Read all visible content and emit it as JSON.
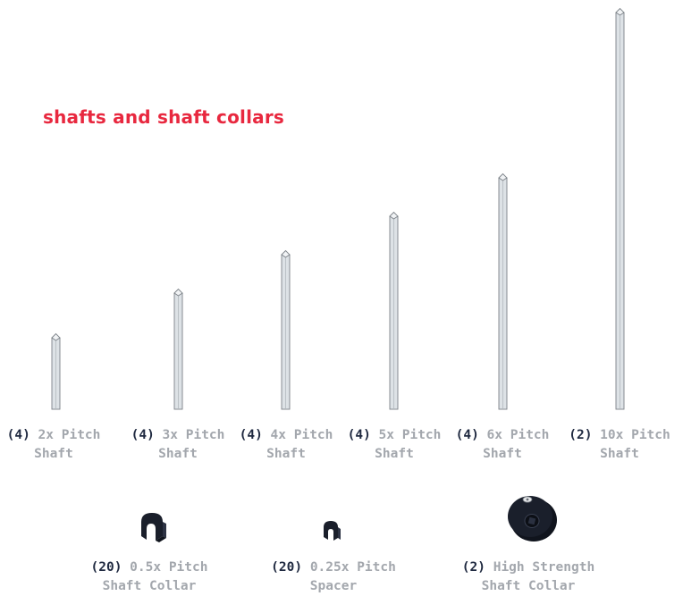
{
  "title": "shafts and shaft collars",
  "shafts": [
    {
      "qty": "(4)",
      "name_line1": "2x Pitch",
      "name_line2": "Shaft",
      "icon": "shaft-icon"
    },
    {
      "qty": "(4)",
      "name_line1": "3x Pitch",
      "name_line2": "Shaft",
      "icon": "shaft-icon"
    },
    {
      "qty": "(4)",
      "name_line1": "4x Pitch",
      "name_line2": "Shaft",
      "icon": "shaft-icon"
    },
    {
      "qty": "(4)",
      "name_line1": "5x Pitch",
      "name_line2": "Shaft",
      "icon": "shaft-icon"
    },
    {
      "qty": "(4)",
      "name_line1": "6x Pitch",
      "name_line2": "Shaft",
      "icon": "shaft-icon"
    },
    {
      "qty": "(2)",
      "name_line1": "10x Pitch",
      "name_line2": "Shaft",
      "icon": "shaft-icon"
    }
  ],
  "collars": [
    {
      "qty": "(20)",
      "name_line1": "0.5x Pitch",
      "name_line2": "Shaft Collar",
      "icon": "shaft-collar-icon"
    },
    {
      "qty": "(20)",
      "name_line1": "0.25x Pitch",
      "name_line2": "Spacer",
      "icon": "spacer-icon"
    },
    {
      "qty": "(2)",
      "name_line1": "High Strength",
      "name_line2": "Shaft Collar",
      "icon": "high-strength-collar-icon"
    }
  ],
  "colors": {
    "title": "#e8283f",
    "quantity": "#1f2940",
    "name": "#a3a7ad",
    "shaft_fill": "#dde2e6",
    "shaft_stroke": "#7c8288",
    "collar": "#1a1f2b"
  }
}
